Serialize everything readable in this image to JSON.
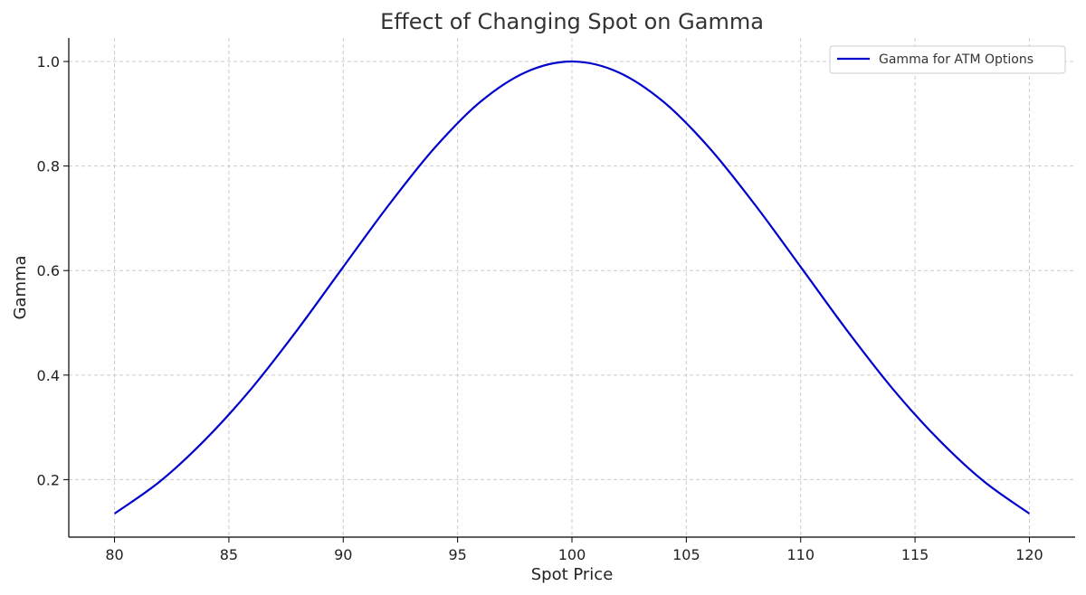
{
  "chart_data": {
    "type": "line",
    "title": "Effect of Changing Spot on Gamma",
    "xlabel": "Spot Price",
    "ylabel": "Gamma",
    "xlim": [
      78,
      122
    ],
    "ylim": [
      0.09,
      1.045
    ],
    "xticks": [
      "80",
      "85",
      "90",
      "95",
      "100",
      "105",
      "110",
      "115",
      "120"
    ],
    "yticks": [
      "0.2",
      "0.4",
      "0.6",
      "0.8",
      "1.0"
    ],
    "grid": true,
    "legend_position": "top-right",
    "colors": {
      "line": "#0000cc",
      "grid": "#cccccc",
      "axis": "#000000"
    },
    "series": [
      {
        "name": "Gamma for ATM Options",
        "x": [
          80,
          82,
          84,
          86,
          88,
          90,
          92,
          94,
          96,
          98,
          100,
          102,
          104,
          106,
          108,
          110,
          112,
          114,
          116,
          118,
          120
        ],
        "y": [
          0.135,
          0.197,
          0.278,
          0.375,
          0.487,
          0.607,
          0.726,
          0.835,
          0.923,
          0.98,
          1.0,
          0.98,
          0.923,
          0.835,
          0.726,
          0.607,
          0.487,
          0.375,
          0.278,
          0.197,
          0.135
        ]
      }
    ]
  }
}
